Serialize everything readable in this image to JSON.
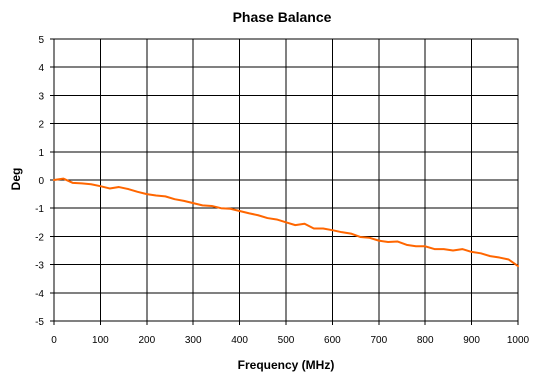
{
  "chart_data": {
    "type": "line",
    "title": "Phase Balance",
    "xlabel": "Frequency (MHz)",
    "ylabel": "Deg",
    "xlim": [
      0,
      1000
    ],
    "ylim": [
      -5,
      5
    ],
    "grid": true,
    "legend": "none",
    "x_ticks": [
      "0",
      "100",
      "200",
      "300",
      "400",
      "500",
      "600",
      "700",
      "800",
      "900",
      "1000"
    ],
    "y_ticks": [
      "5",
      "4",
      "3",
      "2",
      "1",
      "0",
      "-1",
      "-2",
      "-3",
      "-4",
      "-5"
    ],
    "series": [
      {
        "color": "#ff6600",
        "x": [
          0,
          20,
          40,
          60,
          80,
          100,
          120,
          140,
          160,
          180,
          200,
          220,
          240,
          260,
          280,
          300,
          320,
          340,
          360,
          380,
          400,
          420,
          440,
          460,
          480,
          500,
          520,
          540,
          560,
          580,
          600,
          620,
          640,
          660,
          680,
          700,
          720,
          740,
          760,
          780,
          800,
          820,
          840,
          860,
          880,
          900,
          920,
          940,
          960,
          980,
          1000
        ],
        "y": [
          0.0,
          0.05,
          -0.1,
          -0.12,
          -0.15,
          -0.22,
          -0.3,
          -0.25,
          -0.32,
          -0.42,
          -0.5,
          -0.55,
          -0.58,
          -0.68,
          -0.74,
          -0.82,
          -0.9,
          -0.92,
          -1.0,
          -1.02,
          -1.1,
          -1.18,
          -1.25,
          -1.35,
          -1.4,
          -1.5,
          -1.6,
          -1.55,
          -1.72,
          -1.72,
          -1.78,
          -1.85,
          -1.9,
          -2.02,
          -2.05,
          -2.15,
          -2.2,
          -2.18,
          -2.3,
          -2.35,
          -2.35,
          -2.45,
          -2.45,
          -2.5,
          -2.45,
          -2.55,
          -2.6,
          -2.7,
          -2.75,
          -2.82,
          -3.05
        ]
      }
    ]
  }
}
